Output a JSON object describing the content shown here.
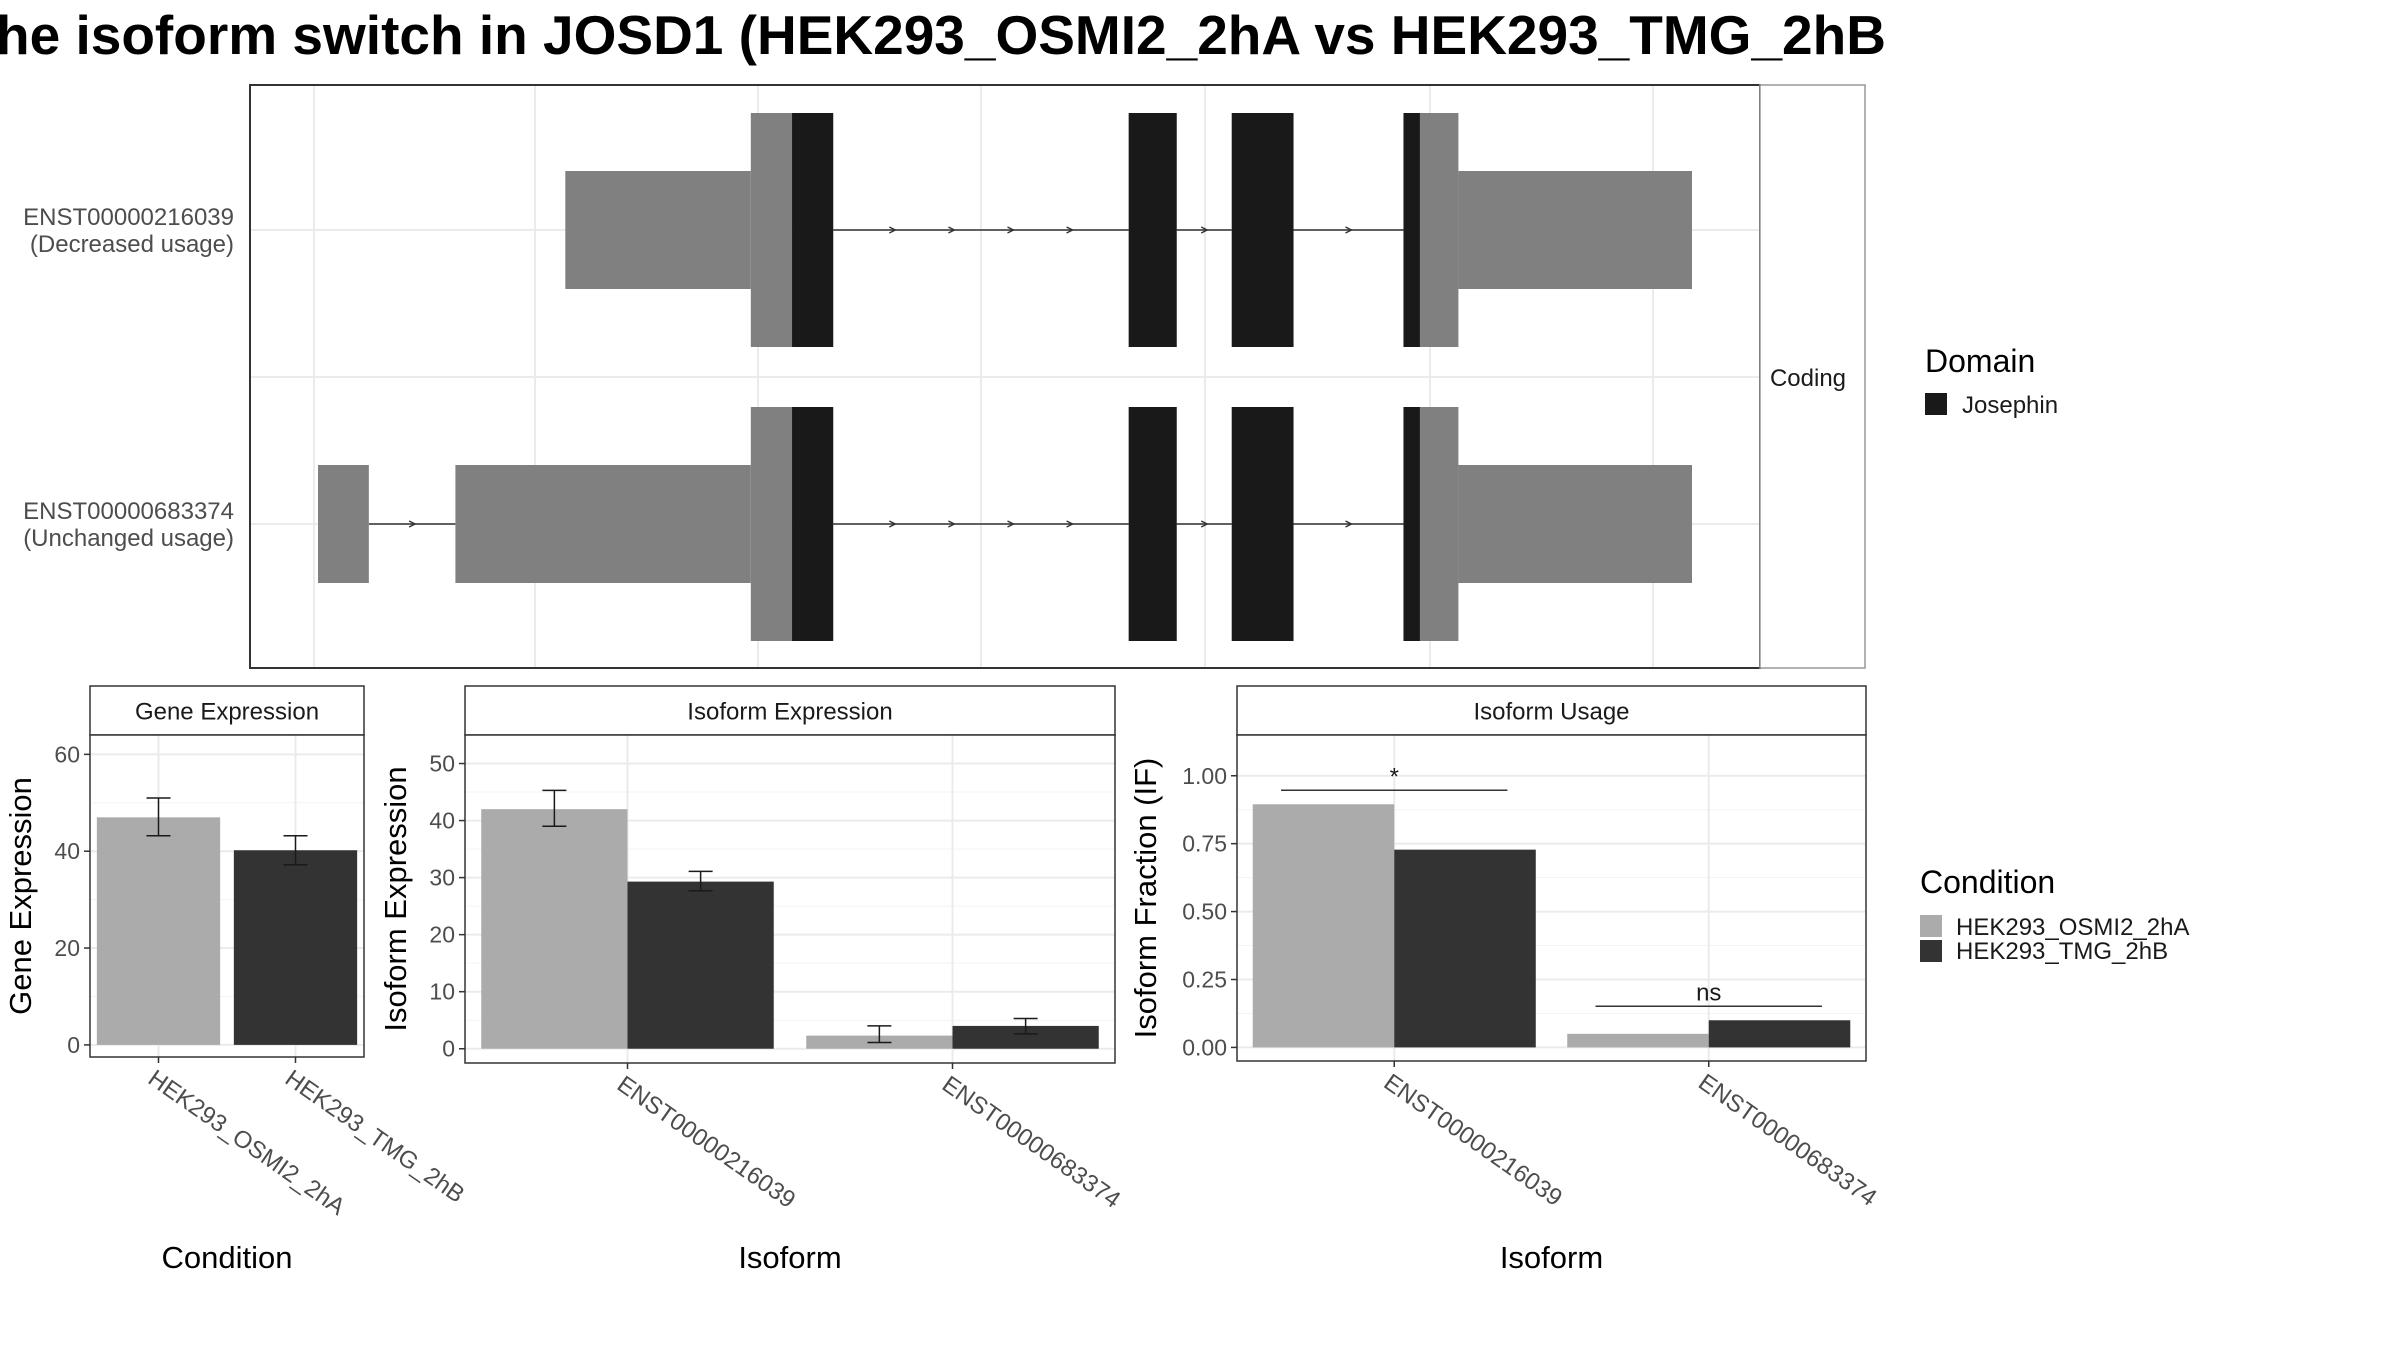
{
  "figure": {
    "title": "he isoform switch in JOSD1 (HEK293_OSMI2_2hA vs HEK293_TMG_2hB"
  },
  "colors": {
    "cond_a": "#ababab",
    "cond_b": "#333333",
    "domain": "#191919",
    "utr": "#808080",
    "grid": "#ebebeb",
    "panel_border": "#333333"
  },
  "chart_data": [
    {
      "type": "transcript-structure",
      "facet_label": "Coding",
      "isoforms": [
        {
          "id": "ENST00000216039",
          "line1": "ENST00000216039",
          "line2": "(Decreased usage)",
          "blocks": [
            {
              "kind": "utr",
              "start": 0.18,
              "end": 0.315
            },
            {
              "kind": "utr",
              "start": 0.315,
              "end": 0.345
            },
            {
              "kind": "domain",
              "start": 0.345,
              "end": 0.375
            },
            {
              "kind": "domain",
              "start": 0.59,
              "end": 0.625
            },
            {
              "kind": "domain",
              "start": 0.665,
              "end": 0.71
            },
            {
              "kind": "domain",
              "start": 0.79,
              "end": 0.802
            },
            {
              "kind": "utr",
              "start": 0.802,
              "end": 0.83
            },
            {
              "kind": "utr",
              "start": 0.83,
              "end": 1.0
            }
          ]
        },
        {
          "id": "ENST00000683374",
          "line1": "ENST00000683374",
          "line2": "(Unchanged usage)",
          "blocks": [
            {
              "kind": "utr-small",
              "start": 0.0,
              "end": 0.037
            },
            {
              "kind": "utr",
              "start": 0.1,
              "end": 0.315
            },
            {
              "kind": "utr",
              "start": 0.315,
              "end": 0.345
            },
            {
              "kind": "domain",
              "start": 0.345,
              "end": 0.375
            },
            {
              "kind": "domain",
              "start": 0.59,
              "end": 0.625
            },
            {
              "kind": "domain",
              "start": 0.665,
              "end": 0.71
            },
            {
              "kind": "domain",
              "start": 0.79,
              "end": 0.802
            },
            {
              "kind": "utr",
              "start": 0.802,
              "end": 0.83
            },
            {
              "kind": "utr",
              "start": 0.83,
              "end": 1.0
            }
          ]
        }
      ],
      "legend": {
        "title": "Domain",
        "items": [
          "Josephin"
        ]
      }
    },
    {
      "type": "bar",
      "title": "Gene Expression",
      "xlabel": "Condition",
      "ylabel": "Gene Expression",
      "ylim": [
        -2.5,
        64
      ],
      "yticks": [
        0,
        20,
        40,
        60
      ],
      "categories": [
        "HEK293_OSMI2_2hA",
        "HEK293_TMG_2hB"
      ],
      "values": [
        47,
        40.2
      ],
      "errors": [
        [
          43.2,
          51
        ],
        [
          37.2,
          43.2
        ]
      ]
    },
    {
      "type": "bar",
      "title": "Isoform Expression",
      "xlabel": "Isoform",
      "ylabel": "Isoform Expression",
      "ylim": [
        -2.5,
        55
      ],
      "yticks": [
        0,
        10,
        20,
        30,
        40,
        50
      ],
      "categories": [
        "ENST00000216039",
        "ENST00000683374"
      ],
      "series": [
        {
          "name": "HEK293_OSMI2_2hA",
          "values": [
            42,
            2.3
          ],
          "errors": [
            [
              39,
              45.3
            ],
            [
              1.1,
              4
            ]
          ]
        },
        {
          "name": "HEK293_TMG_2hB",
          "values": [
            29.3,
            4
          ],
          "errors": [
            [
              27.7,
              31.1
            ],
            [
              2.6,
              5.3
            ]
          ]
        }
      ]
    },
    {
      "type": "bar",
      "title": "Isoform Usage",
      "xlabel": "Isoform",
      "ylabel": "Isoform Fraction (IF)",
      "ylim": [
        -0.05,
        1.15
      ],
      "yticks": [
        0,
        0.25,
        0.5,
        0.75,
        1
      ],
      "ytick_labels": [
        "0.00",
        "0.25",
        "0.50",
        "0.75",
        "1.00"
      ],
      "categories": [
        "ENST00000216039",
        "ENST00000683374"
      ],
      "series": [
        {
          "name": "HEK293_OSMI2_2hA",
          "values": [
            0.895,
            0.05
          ]
        },
        {
          "name": "HEK293_TMG_2hB",
          "values": [
            0.728,
            0.1
          ]
        }
      ],
      "significance": [
        "*",
        "ns"
      ]
    }
  ],
  "condition_legend": {
    "title": "Condition",
    "items": [
      "HEK293_OSMI2_2hA",
      "HEK293_TMG_2hB"
    ]
  }
}
